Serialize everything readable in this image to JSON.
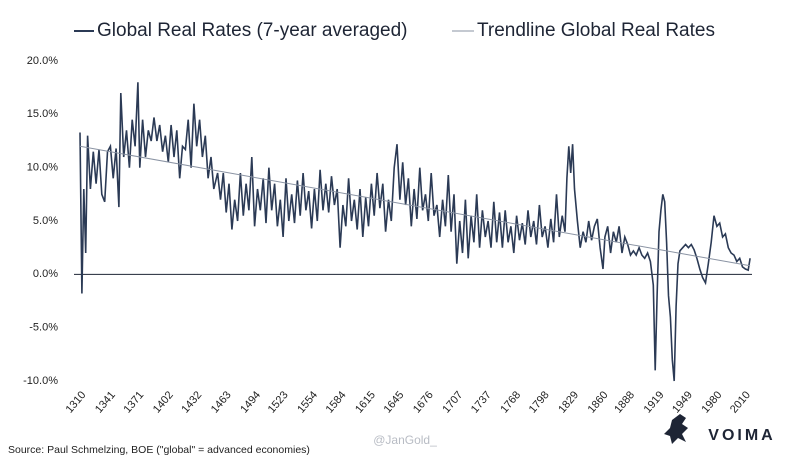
{
  "chart_data": {
    "type": "line",
    "source": "Source: Paul Schmelzing, BOE (\"global\" = advanced economies)",
    "watermark": "@JanGold_",
    "logo": "VOIMA",
    "legend": "top",
    "xlim": [
      1310,
      2018
    ],
    "xticks": [
      1310,
      1341,
      1371,
      1402,
      1432,
      1463,
      1494,
      1523,
      1554,
      1584,
      1615,
      1645,
      1676,
      1707,
      1737,
      1768,
      1798,
      1829,
      1860,
      1888,
      1919,
      1949,
      1980,
      2010
    ],
    "ylim": [
      -10,
      20
    ],
    "yticks": [
      {
        "value": -10,
        "label": "-10.0%"
      },
      {
        "value": -5,
        "label": "-5.0%"
      },
      {
        "value": 0,
        "label": "0.0%"
      },
      {
        "value": 5,
        "label": "5.0%"
      },
      {
        "value": 10,
        "label": "10.0%"
      },
      {
        "value": 15,
        "label": "15.0%"
      },
      {
        "value": 20,
        "label": "20.0%"
      }
    ],
    "series": [
      {
        "name": "Global Real Rates (7-year averaged)",
        "color": "#2b3a55",
        "x": [
          1310,
          1312,
          1314,
          1316,
          1318,
          1321,
          1324,
          1327,
          1330,
          1333,
          1336,
          1339,
          1342,
          1345,
          1348,
          1351,
          1353,
          1356,
          1359,
          1362,
          1365,
          1368,
          1371,
          1373,
          1376,
          1379,
          1382,
          1385,
          1388,
          1391,
          1394,
          1397,
          1400,
          1403,
          1406,
          1409,
          1412,
          1415,
          1418,
          1421,
          1424,
          1427,
          1430,
          1433,
          1436,
          1439,
          1442,
          1445,
          1448,
          1451,
          1455,
          1458,
          1461,
          1464,
          1467,
          1470,
          1473,
          1476,
          1479,
          1482,
          1485,
          1488,
          1491,
          1494,
          1497,
          1500,
          1503,
          1506,
          1509,
          1512,
          1515,
          1518,
          1521,
          1524,
          1527,
          1530,
          1533,
          1536,
          1539,
          1542,
          1545,
          1548,
          1551,
          1554,
          1557,
          1560,
          1563,
          1566,
          1569,
          1572,
          1575,
          1578,
          1581,
          1584,
          1587,
          1590,
          1593,
          1596,
          1599,
          1602,
          1605,
          1608,
          1611,
          1614,
          1617,
          1620,
          1623,
          1626,
          1629,
          1632,
          1635,
          1638,
          1641,
          1644,
          1647,
          1650,
          1653,
          1656,
          1659,
          1662,
          1665,
          1668,
          1671,
          1674,
          1677,
          1680,
          1683,
          1686,
          1689,
          1692,
          1695,
          1698,
          1701,
          1704,
          1707,
          1710,
          1713,
          1716,
          1719,
          1722,
          1725,
          1728,
          1731,
          1734,
          1737,
          1740,
          1743,
          1746,
          1749,
          1752,
          1755,
          1758,
          1761,
          1764,
          1767,
          1770,
          1773,
          1776,
          1779,
          1782,
          1785,
          1788,
          1791,
          1794,
          1797,
          1800,
          1803,
          1806,
          1809,
          1812,
          1815,
          1818,
          1821,
          1823,
          1825,
          1827,
          1829,
          1831,
          1834,
          1837,
          1840,
          1843,
          1846,
          1849,
          1852,
          1855,
          1858,
          1861,
          1863,
          1866,
          1869,
          1872,
          1875,
          1878,
          1881,
          1884,
          1887,
          1890,
          1893,
          1896,
          1899,
          1902,
          1905,
          1908,
          1911,
          1914,
          1916,
          1918,
          1920,
          1922,
          1924,
          1926,
          1928,
          1930,
          1932,
          1934,
          1936,
          1938,
          1940,
          1942,
          1945,
          1948,
          1951,
          1954,
          1957,
          1960,
          1963,
          1966,
          1969,
          1972,
          1975,
          1978,
          1981,
          1984,
          1987,
          1990,
          1993,
          1996,
          1999,
          2002,
          2005,
          2008,
          2011,
          2014,
          2016
        ],
        "values": [
          13.3,
          -1.8,
          8,
          2,
          13,
          8,
          11.5,
          8.5,
          11.7,
          7.5,
          6.8,
          11.5,
          12,
          9,
          11.8,
          6.3,
          17,
          11,
          13.5,
          10,
          14.5,
          12,
          18,
          10,
          14.5,
          11,
          13.5,
          12.5,
          14.7,
          12.5,
          14,
          11.5,
          13,
          10.5,
          14,
          11,
          13.5,
          9,
          12,
          11.7,
          14.5,
          10,
          16,
          12,
          14.5,
          11,
          13,
          9,
          11,
          8,
          9.5,
          7,
          9.5,
          5.8,
          8.5,
          4.2,
          7,
          5,
          9.5,
          5.5,
          8.5,
          6,
          11,
          4.5,
          8,
          6,
          9,
          4.8,
          10,
          6,
          8.5,
          4.5,
          7,
          3.5,
          9,
          5,
          7.5,
          4.8,
          8.8,
          5.5,
          9.5,
          6,
          7.8,
          4.3,
          8,
          5,
          9.8,
          6,
          8.5,
          5.8,
          9.2,
          6.5,
          8,
          2.5,
          6.5,
          4.5,
          9,
          5,
          7,
          4.2,
          8,
          3.5,
          7.2,
          4.5,
          8.5,
          5.5,
          9.5,
          6.2,
          8.5,
          4,
          7,
          5,
          10,
          12.2,
          7,
          10.5,
          6.5,
          9,
          4.5,
          8,
          5.2,
          10,
          6,
          7.5,
          5,
          9.5,
          5.5,
          6.5,
          3.5,
          7,
          4.5,
          9.3,
          4,
          7.5,
          1,
          5,
          2,
          7,
          1.5,
          5.5,
          3,
          7.5,
          2.5,
          6,
          3.5,
          5,
          2.5,
          6.8,
          3,
          5.8,
          2.5,
          6,
          3,
          4.5,
          2,
          5.5,
          3.2,
          4.8,
          2.8,
          6,
          3.5,
          5,
          2.8,
          6.5,
          3.5,
          4.5,
          2.5,
          5.2,
          3,
          7.5,
          3.5,
          5.5,
          4,
          9,
          12,
          9.5,
          12.2,
          8,
          5,
          2.5,
          4,
          3,
          5,
          3.2,
          4.5,
          5.2,
          2.5,
          0.5,
          3.5,
          4.5,
          2,
          4,
          3,
          4.5,
          2,
          3.5,
          2.8,
          1.8,
          2.2,
          1.8,
          2.5,
          1.8,
          1.5,
          2,
          1.2,
          -1,
          -9,
          -2,
          4,
          6,
          7.5,
          6.8,
          3,
          -2,
          -4,
          -8,
          -10,
          -3,
          1,
          2.2,
          2.5,
          2.8,
          2.5,
          2.8,
          2.3,
          1.5,
          0.5,
          -0.3,
          -0.8,
          1,
          3,
          5.5,
          4.5,
          4.8,
          3.5,
          3.8,
          2.5,
          2,
          1.8,
          1.2,
          1.5,
          0.7,
          0.5,
          0.4,
          1.5
        ]
      },
      {
        "name": "Trendline Global Real Rates",
        "color": "#8a93a3",
        "x": [
          1310,
          2016
        ],
        "values": [
          12,
          0.8
        ]
      }
    ]
  }
}
